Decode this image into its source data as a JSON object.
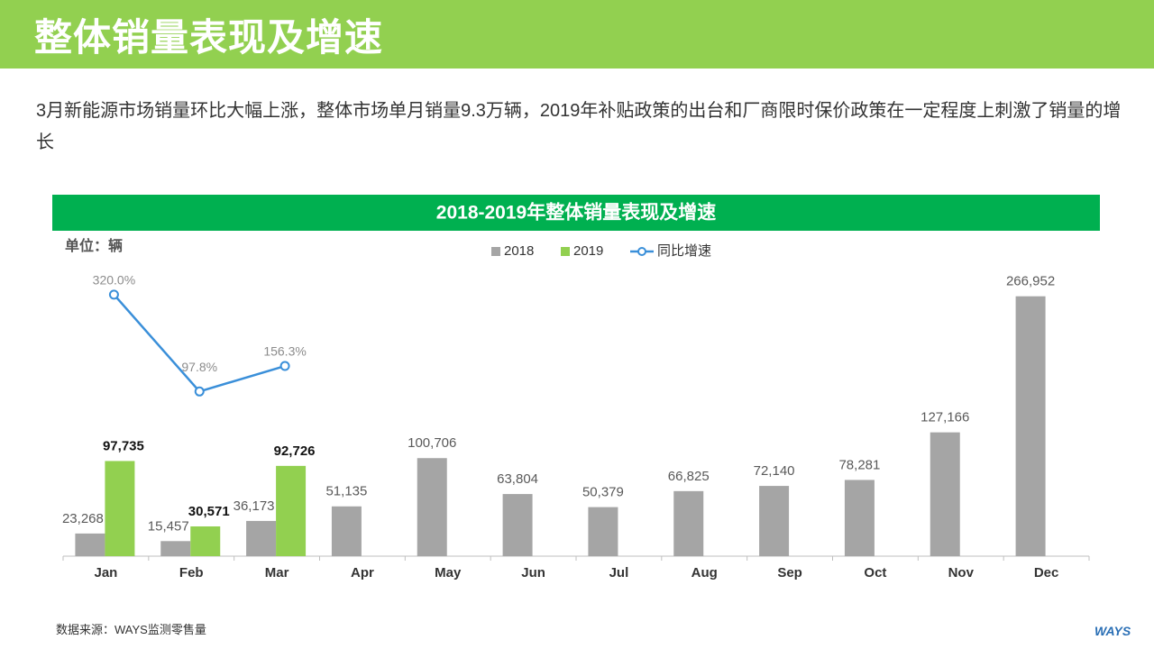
{
  "header": {
    "title": "整体销量表现及增速"
  },
  "description": "3月新能源市场销量环比大幅上涨，整体市场单月销量9.3万辆，2019年补贴政策的出台和厂商限时保价政策在一定程度上刺激了销量的增长",
  "chart_data": {
    "type": "bar",
    "title": "2018-2019年整体销量表现及增速",
    "unit_label": "单位：辆",
    "categories": [
      "Jan",
      "Feb",
      "Mar",
      "Apr",
      "May",
      "Jun",
      "Jul",
      "Aug",
      "Sep",
      "Oct",
      "Nov",
      "Dec"
    ],
    "series": [
      {
        "name": "2018",
        "color": "#a5a5a5",
        "values": [
          23268,
          15457,
          36173,
          51135,
          100706,
          63804,
          50379,
          66825,
          72140,
          78281,
          127166,
          266952
        ],
        "value_labels": [
          "23,268",
          "15,457",
          "36,173",
          "51,135",
          "100,706",
          "63,804",
          "50,379",
          "66,825",
          "72,140",
          "78,281",
          "127,166",
          "266,952"
        ]
      },
      {
        "name": "2019",
        "color": "#92d050",
        "values": [
          97735,
          30571,
          92726,
          null,
          null,
          null,
          null,
          null,
          null,
          null,
          null,
          null
        ],
        "value_labels": [
          "97,735",
          "30,571",
          "92,726",
          null,
          null,
          null,
          null,
          null,
          null,
          null,
          null,
          null
        ]
      },
      {
        "name": "同比增速",
        "type": "line",
        "axis": "y2",
        "color": "#3a8fd9",
        "values": [
          320.0,
          97.8,
          156.3,
          null,
          null,
          null,
          null,
          null,
          null,
          null,
          null,
          null
        ],
        "value_labels": [
          "320.0%",
          "97.8%",
          "156.3%",
          null,
          null,
          null,
          null,
          null,
          null,
          null,
          null,
          null
        ]
      }
    ],
    "ylim": [
      0,
      300000
    ],
    "y2lim": [
      -280,
      390
    ],
    "legend": "top"
  },
  "source": "数据来源：WAYS监测零售量",
  "logo": "WAYS"
}
